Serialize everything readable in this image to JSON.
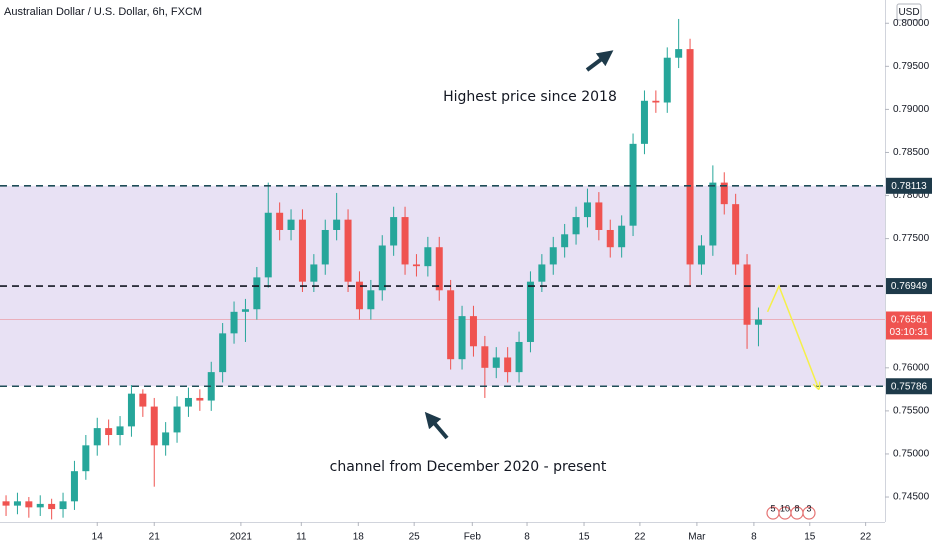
{
  "chart_data": {
    "type": "candlestick",
    "title": "Australian Dollar / U.S. Dollar, 6h, FXCM",
    "unit": "USD",
    "up_color": "#26a69a",
    "down_color": "#ef5350",
    "grid": false,
    "xlim": [
      -0.53,
      77.1
    ],
    "ylim": [
      0.7421,
      0.8027
    ],
    "xticks": [
      {
        "value": 8,
        "label": "14"
      },
      {
        "value": 13,
        "label": "21"
      },
      {
        "value": 20.6,
        "label": "2021"
      },
      {
        "value": 25.9,
        "label": "11"
      },
      {
        "value": 30.9,
        "label": "18"
      },
      {
        "value": 35.8,
        "label": "25"
      },
      {
        "value": 40.9,
        "label": "Feb"
      },
      {
        "value": 45.7,
        "label": "8"
      },
      {
        "value": 50.7,
        "label": "15"
      },
      {
        "value": 55.6,
        "label": "22"
      },
      {
        "value": 60.6,
        "label": "Mar"
      },
      {
        "value": 65.6,
        "label": "8"
      },
      {
        "value": 70.5,
        "label": "15"
      },
      {
        "value": 75.4,
        "label": "22"
      }
    ],
    "yticks": [
      {
        "value": 0.8,
        "label": "0.80000"
      },
      {
        "value": 0.795,
        "label": "0.79500"
      },
      {
        "value": 0.79,
        "label": "0.79000"
      },
      {
        "value": 0.785,
        "label": "0.78500"
      },
      {
        "value": 0.78,
        "label": "0.78000"
      },
      {
        "value": 0.775,
        "label": "0.77500"
      },
      {
        "value": 0.76,
        "label": "0.76000"
      },
      {
        "value": 0.755,
        "label": "0.75500"
      },
      {
        "value": 0.75,
        "label": "0.75000"
      },
      {
        "value": 0.745,
        "label": "0.74500"
      }
    ],
    "candles": [
      [
        0.7445,
        0.7452,
        0.7428,
        0.744
      ],
      [
        0.744,
        0.7455,
        0.743,
        0.7445
      ],
      [
        0.7445,
        0.745,
        0.7426,
        0.7438
      ],
      [
        0.7438,
        0.7452,
        0.7428,
        0.7442
      ],
      [
        0.7442,
        0.7448,
        0.7424,
        0.7436
      ],
      [
        0.7436,
        0.7455,
        0.7426,
        0.7445
      ],
      [
        0.7445,
        0.7492,
        0.7435,
        0.748
      ],
      [
        0.748,
        0.7522,
        0.747,
        0.751
      ],
      [
        0.751,
        0.7542,
        0.7498,
        0.753
      ],
      [
        0.753,
        0.754,
        0.751,
        0.7522
      ],
      [
        0.7522,
        0.7544,
        0.751,
        0.7532
      ],
      [
        0.7532,
        0.758,
        0.752,
        0.757
      ],
      [
        0.757,
        0.7575,
        0.7543,
        0.7555
      ],
      [
        0.7555,
        0.7565,
        0.7462,
        0.751
      ],
      [
        0.751,
        0.7537,
        0.7498,
        0.7525
      ],
      [
        0.7525,
        0.7567,
        0.7513,
        0.7555
      ],
      [
        0.7555,
        0.7577,
        0.7543,
        0.7565
      ],
      [
        0.7565,
        0.7575,
        0.755,
        0.7562
      ],
      [
        0.7562,
        0.7607,
        0.755,
        0.7595
      ],
      [
        0.7595,
        0.7652,
        0.7583,
        0.764
      ],
      [
        0.764,
        0.7677,
        0.7628,
        0.7665
      ],
      [
        0.7665,
        0.768,
        0.763,
        0.7668
      ],
      [
        0.7668,
        0.7717,
        0.7656,
        0.7705
      ],
      [
        0.7705,
        0.7815,
        0.7693,
        0.778
      ],
      [
        0.778,
        0.7792,
        0.7748,
        0.776
      ],
      [
        0.776,
        0.7784,
        0.7748,
        0.7772
      ],
      [
        0.7772,
        0.7784,
        0.7688,
        0.77
      ],
      [
        0.77,
        0.7732,
        0.7688,
        0.772
      ],
      [
        0.772,
        0.7772,
        0.7708,
        0.776
      ],
      [
        0.776,
        0.7803,
        0.7748,
        0.7772
      ],
      [
        0.7772,
        0.7784,
        0.7688,
        0.77
      ],
      [
        0.77,
        0.7712,
        0.7656,
        0.7668
      ],
      [
        0.7668,
        0.7702,
        0.7656,
        0.769
      ],
      [
        0.769,
        0.7754,
        0.7678,
        0.7742
      ],
      [
        0.7742,
        0.7787,
        0.773,
        0.7775
      ],
      [
        0.7775,
        0.7787,
        0.7708,
        0.772
      ],
      [
        0.772,
        0.7732,
        0.7706,
        0.7718
      ],
      [
        0.7718,
        0.7752,
        0.7706,
        0.774
      ],
      [
        0.774,
        0.7752,
        0.7678,
        0.769
      ],
      [
        0.769,
        0.7702,
        0.7598,
        0.761
      ],
      [
        0.761,
        0.7672,
        0.7598,
        0.766
      ],
      [
        0.766,
        0.7672,
        0.7613,
        0.7625
      ],
      [
        0.7625,
        0.7637,
        0.7565,
        0.76
      ],
      [
        0.76,
        0.7624,
        0.7588,
        0.7612
      ],
      [
        0.7612,
        0.7624,
        0.7583,
        0.7595
      ],
      [
        0.7595,
        0.7642,
        0.7583,
        0.763
      ],
      [
        0.763,
        0.7712,
        0.7618,
        0.77
      ],
      [
        0.77,
        0.7732,
        0.7688,
        0.772
      ],
      [
        0.772,
        0.7752,
        0.7708,
        0.774
      ],
      [
        0.774,
        0.7767,
        0.7728,
        0.7755
      ],
      [
        0.7755,
        0.7787,
        0.7743,
        0.7775
      ],
      [
        0.7775,
        0.7808,
        0.7763,
        0.7792
      ],
      [
        0.7792,
        0.7804,
        0.7748,
        0.776
      ],
      [
        0.776,
        0.7772,
        0.7728,
        0.774
      ],
      [
        0.774,
        0.7777,
        0.7728,
        0.7765
      ],
      [
        0.7765,
        0.7872,
        0.7753,
        0.786
      ],
      [
        0.786,
        0.7922,
        0.7848,
        0.791
      ],
      [
        0.791,
        0.7922,
        0.7896,
        0.7908
      ],
      [
        0.7908,
        0.7972,
        0.7896,
        0.796
      ],
      [
        0.796,
        0.8005,
        0.7948,
        0.797
      ],
      [
        0.797,
        0.7982,
        0.7695,
        0.772
      ],
      [
        0.772,
        0.7754,
        0.7708,
        0.7742
      ],
      [
        0.7742,
        0.7835,
        0.773,
        0.7815
      ],
      [
        0.7815,
        0.7827,
        0.7778,
        0.779
      ],
      [
        0.779,
        0.7802,
        0.7708,
        0.772
      ],
      [
        0.772,
        0.7732,
        0.7622,
        0.765
      ],
      [
        0.765,
        0.767,
        0.7625,
        0.76561
      ]
    ],
    "levels": [
      {
        "value": 0.78113,
        "label": "0.78113"
      },
      {
        "value": 0.76949,
        "label": "0.76949"
      },
      {
        "value": 0.75786,
        "label": "0.75786"
      }
    ],
    "current_price": {
      "value": 0.76561,
      "label": "0.76561",
      "countdown": "03:10:31"
    },
    "projection": {
      "color": "#f5f04a",
      "x": [
        66.8,
        67.8,
        71.2
      ],
      "values": [
        0.7665,
        0.76949,
        0.75786
      ]
    },
    "annotations": [
      "Highest price since 2018",
      "channel from December 2020 - present"
    ],
    "events": [
      "5",
      "10",
      "8",
      "3"
    ]
  }
}
